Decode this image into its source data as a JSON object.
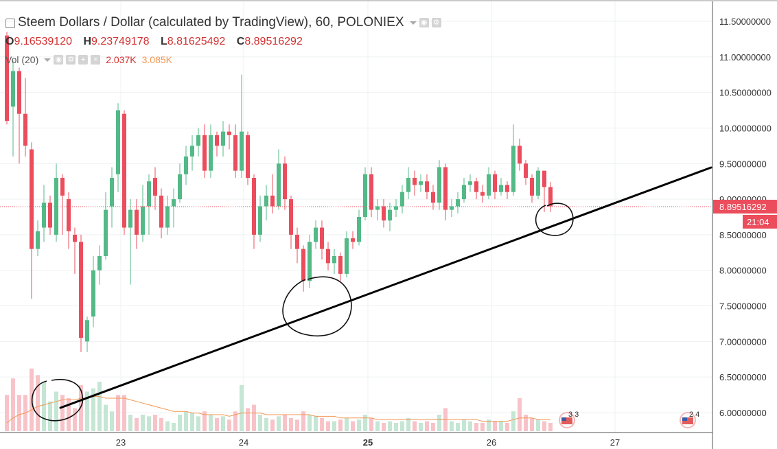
{
  "header": {
    "title": "Steem Dollars / Dollar (calculated by TradingView), 60, POLONIEX",
    "ohlc": {
      "o_label": "O",
      "o": "9.16539120",
      "h_label": "H",
      "h": "9.23749178",
      "l_label": "L",
      "l": "8.81625492",
      "c_label": "C",
      "c": "8.89516292"
    },
    "volume": {
      "label": "Vol (20)",
      "value1": "2.037K",
      "value2": "3.085K"
    }
  },
  "colors": {
    "up": "#53b987",
    "down": "#eb4d5c",
    "vol_up": "#c5e6d4",
    "vol_down": "#f8c3c8",
    "ma": "#f29650",
    "price_line": "#eb4d5c",
    "trend": "#000000"
  },
  "price_tag": {
    "value": "8.89516292",
    "countdown": "21:04"
  },
  "events": [
    {
      "label": "3 3"
    },
    {
      "label": "2 4"
    }
  ],
  "icons": [
    "eye-icon",
    "gear-icon",
    "plus-icon",
    "close-icon"
  ],
  "chart_data": {
    "type": "candlestick",
    "title": "Steem Dollars / Dollar (calculated by TradingView), 60, POLONIEX",
    "x_ticks": [
      "23",
      "24",
      "25",
      "26",
      "27"
    ],
    "y_ticks": [
      "6.00000000",
      "6.50000000",
      "7.00000000",
      "7.50000000",
      "8.00000000",
      "8.50000000",
      "9.00000000",
      "9.50000000",
      "10.00000000",
      "10.50000000",
      "11.00000000",
      "11.50000000"
    ],
    "ylim": [
      5.72,
      11.78
    ],
    "grid": true,
    "candles": [
      [
        11.3,
        10.1,
        11.35,
        10.05
      ],
      [
        10.3,
        10.8,
        10.95,
        9.6
      ],
      [
        10.8,
        10.2,
        10.85,
        9.5
      ],
      [
        10.2,
        9.75,
        10.7,
        9.6
      ],
      [
        9.7,
        8.3,
        9.8,
        7.6
      ],
      [
        8.3,
        8.55,
        8.7,
        8.2
      ],
      [
        8.6,
        8.95,
        9.2,
        8.4
      ],
      [
        8.95,
        8.6,
        9.05,
        8.5
      ],
      [
        8.5,
        9.3,
        9.5,
        8.4
      ],
      [
        9.3,
        9.05,
        9.35,
        8.5
      ],
      [
        9.0,
        8.55,
        9.1,
        8.3
      ],
      [
        8.5,
        8.4,
        8.6,
        7.95
      ],
      [
        8.4,
        7.05,
        8.5,
        6.85
      ],
      [
        7.0,
        7.3,
        7.35,
        6.85
      ],
      [
        7.35,
        8.0,
        8.2,
        7.2
      ],
      [
        8.0,
        8.2,
        8.35,
        7.8
      ],
      [
        8.2,
        8.85,
        9.1,
        8.15
      ],
      [
        8.9,
        9.3,
        9.45,
        8.6
      ],
      [
        9.35,
        10.25,
        10.35,
        9.1
      ],
      [
        10.2,
        8.6,
        10.25,
        8.5
      ],
      [
        8.6,
        8.85,
        9.0,
        7.8
      ],
      [
        8.85,
        8.5,
        9.0,
        8.3
      ],
      [
        8.5,
        8.9,
        9.2,
        8.4
      ],
      [
        8.9,
        9.25,
        9.35,
        8.5
      ],
      [
        9.3,
        9.05,
        9.45,
        8.85
      ],
      [
        9.05,
        8.6,
        9.15,
        8.45
      ],
      [
        8.6,
        8.9,
        9.05,
        8.5
      ],
      [
        8.9,
        9.0,
        9.15,
        8.6
      ],
      [
        9.0,
        9.35,
        9.5,
        8.95
      ],
      [
        9.35,
        9.6,
        9.75,
        9.2
      ],
      [
        9.6,
        9.75,
        9.9,
        9.4
      ],
      [
        9.75,
        9.9,
        10.0,
        9.6
      ],
      [
        9.9,
        9.4,
        10.05,
        9.3
      ],
      [
        9.4,
        9.9,
        10.05,
        9.3
      ],
      [
        9.9,
        9.75,
        9.95,
        9.6
      ],
      [
        9.75,
        9.95,
        10.1,
        9.6
      ],
      [
        9.95,
        9.9,
        10.05,
        9.7
      ],
      [
        9.9,
        9.4,
        10.05,
        9.3
      ],
      [
        9.4,
        9.95,
        10.75,
        9.3
      ],
      [
        9.9,
        9.3,
        9.95,
        9.2
      ],
      [
        9.3,
        8.5,
        9.35,
        8.3
      ],
      [
        8.5,
        8.9,
        9.05,
        8.4
      ],
      [
        8.9,
        9.05,
        9.2,
        8.7
      ],
      [
        9.05,
        8.9,
        9.35,
        8.8
      ],
      [
        8.9,
        9.5,
        9.7,
        8.85
      ],
      [
        9.5,
        9.0,
        9.6,
        8.85
      ],
      [
        9.0,
        8.5,
        9.05,
        8.3
      ],
      [
        8.5,
        8.3,
        8.6,
        8.1
      ],
      [
        8.3,
        7.85,
        8.35,
        7.7
      ],
      [
        7.85,
        8.4,
        8.5,
        7.75
      ],
      [
        8.4,
        8.6,
        8.7,
        8.3
      ],
      [
        8.6,
        8.3,
        8.7,
        8.15
      ],
      [
        8.3,
        8.1,
        8.4,
        8.0
      ],
      [
        8.1,
        8.2,
        8.3,
        7.95
      ],
      [
        8.2,
        7.95,
        8.25,
        7.85
      ],
      [
        7.95,
        8.45,
        8.55,
        7.9
      ],
      [
        8.45,
        8.4,
        8.55,
        8.3
      ],
      [
        8.4,
        8.75,
        8.85,
        8.35
      ],
      [
        8.75,
        9.35,
        9.45,
        8.7
      ],
      [
        9.35,
        8.85,
        9.45,
        8.75
      ],
      [
        8.85,
        8.9,
        9.0,
        8.7
      ],
      [
        8.9,
        8.7,
        9.0,
        8.6
      ],
      [
        8.7,
        8.85,
        8.95,
        8.55
      ],
      [
        8.85,
        8.9,
        9.0,
        8.75
      ],
      [
        8.9,
        9.1,
        9.2,
        8.8
      ],
      [
        9.1,
        9.3,
        9.45,
        9.0
      ],
      [
        9.3,
        9.2,
        9.4,
        9.05
      ],
      [
        9.2,
        9.25,
        9.35,
        9.1
      ],
      [
        9.25,
        9.1,
        9.35,
        9.0
      ],
      [
        9.1,
        8.95,
        9.2,
        8.85
      ],
      [
        8.95,
        9.45,
        9.55,
        8.85
      ],
      [
        9.45,
        8.85,
        9.5,
        8.7
      ],
      [
        8.85,
        8.9,
        9.0,
        8.75
      ],
      [
        8.9,
        9.0,
        9.1,
        8.8
      ],
      [
        9.0,
        9.2,
        9.3,
        8.95
      ],
      [
        9.2,
        9.25,
        9.35,
        9.1
      ],
      [
        9.25,
        9.1,
        9.3,
        9.0
      ],
      [
        9.1,
        9.05,
        9.2,
        8.95
      ],
      [
        9.05,
        9.35,
        9.45,
        9.0
      ],
      [
        9.35,
        9.1,
        9.4,
        9.0
      ],
      [
        9.1,
        9.2,
        9.3,
        9.05
      ],
      [
        9.2,
        9.1,
        9.25,
        9.0
      ],
      [
        9.1,
        9.75,
        10.05,
        9.05
      ],
      [
        9.75,
        9.5,
        9.85,
        9.4
      ],
      [
        9.5,
        9.3,
        9.55,
        9.2
      ],
      [
        9.3,
        9.05,
        9.35,
        8.95
      ],
      [
        9.05,
        9.4,
        9.45,
        9.0
      ],
      [
        9.4,
        9.17,
        9.25,
        8.82
      ],
      [
        9.17,
        8.9,
        9.24,
        8.82
      ]
    ],
    "volumes": [
      [
        0.22,
        0
      ],
      [
        0.32,
        0
      ],
      [
        0.22,
        0
      ],
      [
        0.22,
        0
      ],
      [
        0.38,
        0
      ],
      [
        0.34,
        0
      ],
      [
        0.3,
        1
      ],
      [
        0.18,
        1
      ],
      [
        0.24,
        1
      ],
      [
        0.22,
        0
      ],
      [
        0.2,
        0
      ],
      [
        0.14,
        0
      ],
      [
        0.28,
        0
      ],
      [
        0.24,
        1
      ],
      [
        0.26,
        1
      ],
      [
        0.3,
        1
      ],
      [
        0.16,
        1
      ],
      [
        0.12,
        1
      ],
      [
        0.22,
        0
      ],
      [
        0.22,
        0
      ],
      [
        0.1,
        1
      ],
      [
        0.08,
        0
      ],
      [
        0.1,
        1
      ],
      [
        0.09,
        1
      ],
      [
        0.1,
        0
      ],
      [
        0.08,
        0
      ],
      [
        0.06,
        1
      ],
      [
        0.05,
        1
      ],
      [
        0.1,
        1
      ],
      [
        0.12,
        1
      ],
      [
        0.11,
        1
      ],
      [
        0.09,
        1
      ],
      [
        0.12,
        0
      ],
      [
        0.1,
        1
      ],
      [
        0.08,
        0
      ],
      [
        0.09,
        1
      ],
      [
        0.07,
        0
      ],
      [
        0.12,
        0
      ],
      [
        0.28,
        1
      ],
      [
        0.14,
        0
      ],
      [
        0.16,
        0
      ],
      [
        0.1,
        1
      ],
      [
        0.08,
        1
      ],
      [
        0.07,
        0
      ],
      [
        0.09,
        1
      ],
      [
        0.1,
        0
      ],
      [
        0.08,
        0
      ],
      [
        0.07,
        0
      ],
      [
        0.12,
        0
      ],
      [
        0.1,
        1
      ],
      [
        0.09,
        1
      ],
      [
        0.08,
        0
      ],
      [
        0.06,
        0
      ],
      [
        0.06,
        1
      ],
      [
        0.07,
        0
      ],
      [
        0.08,
        1
      ],
      [
        0.06,
        0
      ],
      [
        0.07,
        1
      ],
      [
        0.1,
        1
      ],
      [
        0.08,
        0
      ],
      [
        0.06,
        1
      ],
      [
        0.05,
        0
      ],
      [
        0.06,
        1
      ],
      [
        0.05,
        1
      ],
      [
        0.06,
        1
      ],
      [
        0.08,
        1
      ],
      [
        0.06,
        0
      ],
      [
        0.05,
        1
      ],
      [
        0.06,
        0
      ],
      [
        0.05,
        0
      ],
      [
        0.1,
        1
      ],
      [
        0.14,
        0
      ],
      [
        0.06,
        1
      ],
      [
        0.05,
        1
      ],
      [
        0.07,
        1
      ],
      [
        0.06,
        1
      ],
      [
        0.05,
        0
      ],
      [
        0.05,
        0
      ],
      [
        0.07,
        1
      ],
      [
        0.06,
        0
      ],
      [
        0.06,
        1
      ],
      [
        0.05,
        0
      ],
      [
        0.12,
        1
      ],
      [
        0.2,
        0
      ],
      [
        0.1,
        0
      ],
      [
        0.08,
        0
      ],
      [
        0.07,
        1
      ],
      [
        0.06,
        0
      ],
      [
        0.05,
        0
      ]
    ],
    "ma_volume": [
      0.05,
      0.08,
      0.1,
      0.11,
      0.13,
      0.15,
      0.16,
      0.17,
      0.18,
      0.19,
      0.19,
      0.19,
      0.2,
      0.2,
      0.21,
      0.21,
      0.2,
      0.2,
      0.2,
      0.2,
      0.19,
      0.18,
      0.17,
      0.16,
      0.15,
      0.14,
      0.13,
      0.12,
      0.12,
      0.12,
      0.11,
      0.11,
      0.1,
      0.1,
      0.1,
      0.1,
      0.09,
      0.1,
      0.11,
      0.11,
      0.11,
      0.11,
      0.1,
      0.1,
      0.1,
      0.1,
      0.1,
      0.1,
      0.1,
      0.1,
      0.09,
      0.09,
      0.09,
      0.09,
      0.08,
      0.08,
      0.08,
      0.08,
      0.08,
      0.08,
      0.07,
      0.07,
      0.07,
      0.07,
      0.07,
      0.07,
      0.07,
      0.07,
      0.07,
      0.07,
      0.07,
      0.07,
      0.07,
      0.07,
      0.07,
      0.07,
      0.07,
      0.06,
      0.06,
      0.06,
      0.06,
      0.06,
      0.07,
      0.08,
      0.08,
      0.08,
      0.07,
      0.07,
      0.07
    ],
    "current_price": 8.89516292,
    "trendline": [
      [
        0,
        5.9
      ],
      [
        110,
        9.6
      ]
    ]
  }
}
